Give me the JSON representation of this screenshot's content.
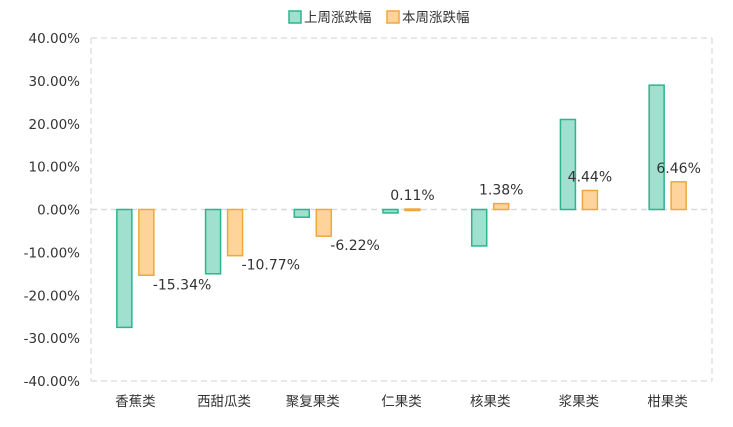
{
  "chart_data": {
    "type": "bar",
    "categories": [
      "香蕉类",
      "西甜瓜类",
      "聚复果类",
      "仁果类",
      "核果类",
      "浆果类",
      "柑果类"
    ],
    "series": [
      {
        "name": "上周涨跌幅",
        "values": [
          -27.5,
          -15.0,
          -1.8,
          -0.8,
          -8.5,
          21.0,
          29.0
        ],
        "fill": "#9fe0cf",
        "stroke": "#2bb58c"
      },
      {
        "name": "本周涨跌幅",
        "values": [
          -15.34,
          -10.77,
          -6.22,
          0.11,
          1.38,
          4.44,
          6.46
        ],
        "fill": "#ffd49a",
        "stroke": "#f2a73b",
        "labels": [
          "-15.34%",
          "-10.77%",
          "-6.22%",
          "0.11%",
          "1.38%",
          "4.44%",
          "6.46%"
        ]
      }
    ],
    "ylim": [
      -40,
      40
    ],
    "yticks": [
      40,
      30,
      20,
      10,
      0,
      -10,
      -20,
      -30,
      -40
    ],
    "ytick_labels": [
      "40.00%",
      "30.00%",
      "20.00%",
      "10.00%",
      "0.00%",
      "-10.00%",
      "-20.00%",
      "-30.00%",
      "-40.00%"
    ],
    "grid": false,
    "legend_position": "top-center"
  }
}
